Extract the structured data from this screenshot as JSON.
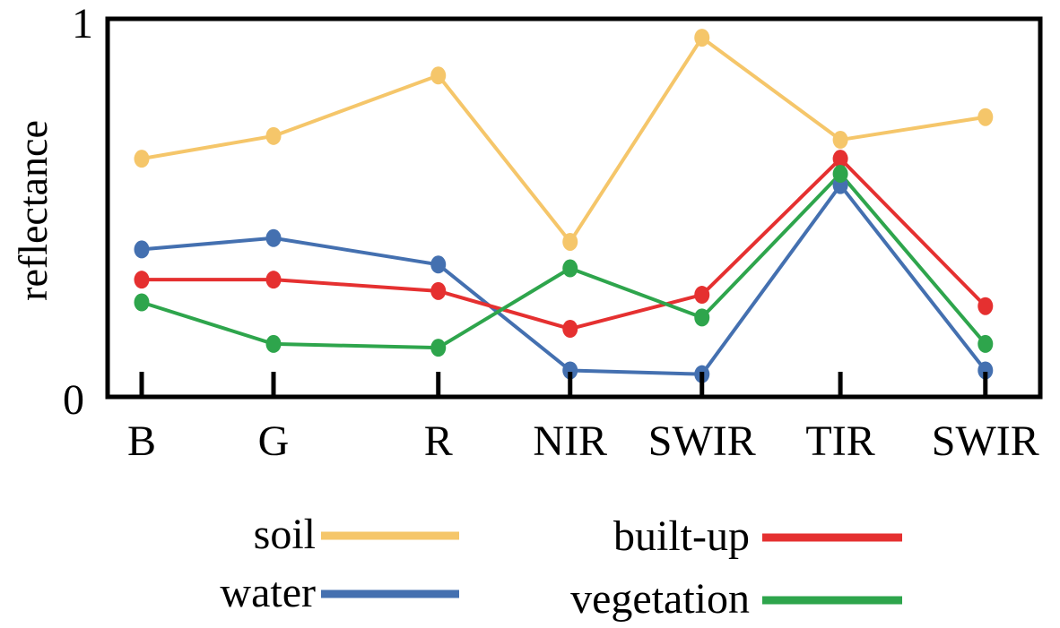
{
  "chart_data": {
    "type": "line",
    "ylabel": "reflectance",
    "ylim": [
      0,
      1
    ],
    "y_tick_labels": [
      "0",
      "1"
    ],
    "grid": false,
    "legend_placement": "bottom",
    "categories": [
      "B",
      "G",
      "R",
      "NIR",
      "SWIR",
      "TIR",
      "SWIR"
    ],
    "x_positions": [
      1,
      2,
      3.25,
      4.25,
      5.25,
      6.3,
      7.4
    ],
    "series": [
      {
        "name": "soil",
        "color": "#F5C66A",
        "values": [
          0.63,
          0.69,
          0.85,
          0.41,
          0.95,
          0.68,
          0.74
        ]
      },
      {
        "name": "water",
        "color": "#4470B0",
        "values": [
          0.39,
          0.42,
          0.35,
          0.07,
          0.06,
          0.56,
          0.07
        ]
      },
      {
        "name": "built-up",
        "color": "#E53030",
        "values": [
          0.31,
          0.31,
          0.28,
          0.18,
          0.27,
          0.63,
          0.24
        ]
      },
      {
        "name": "vegetation",
        "color": "#2EA54C",
        "values": [
          0.25,
          0.14,
          0.13,
          0.34,
          0.21,
          0.59,
          0.14
        ]
      }
    ]
  }
}
